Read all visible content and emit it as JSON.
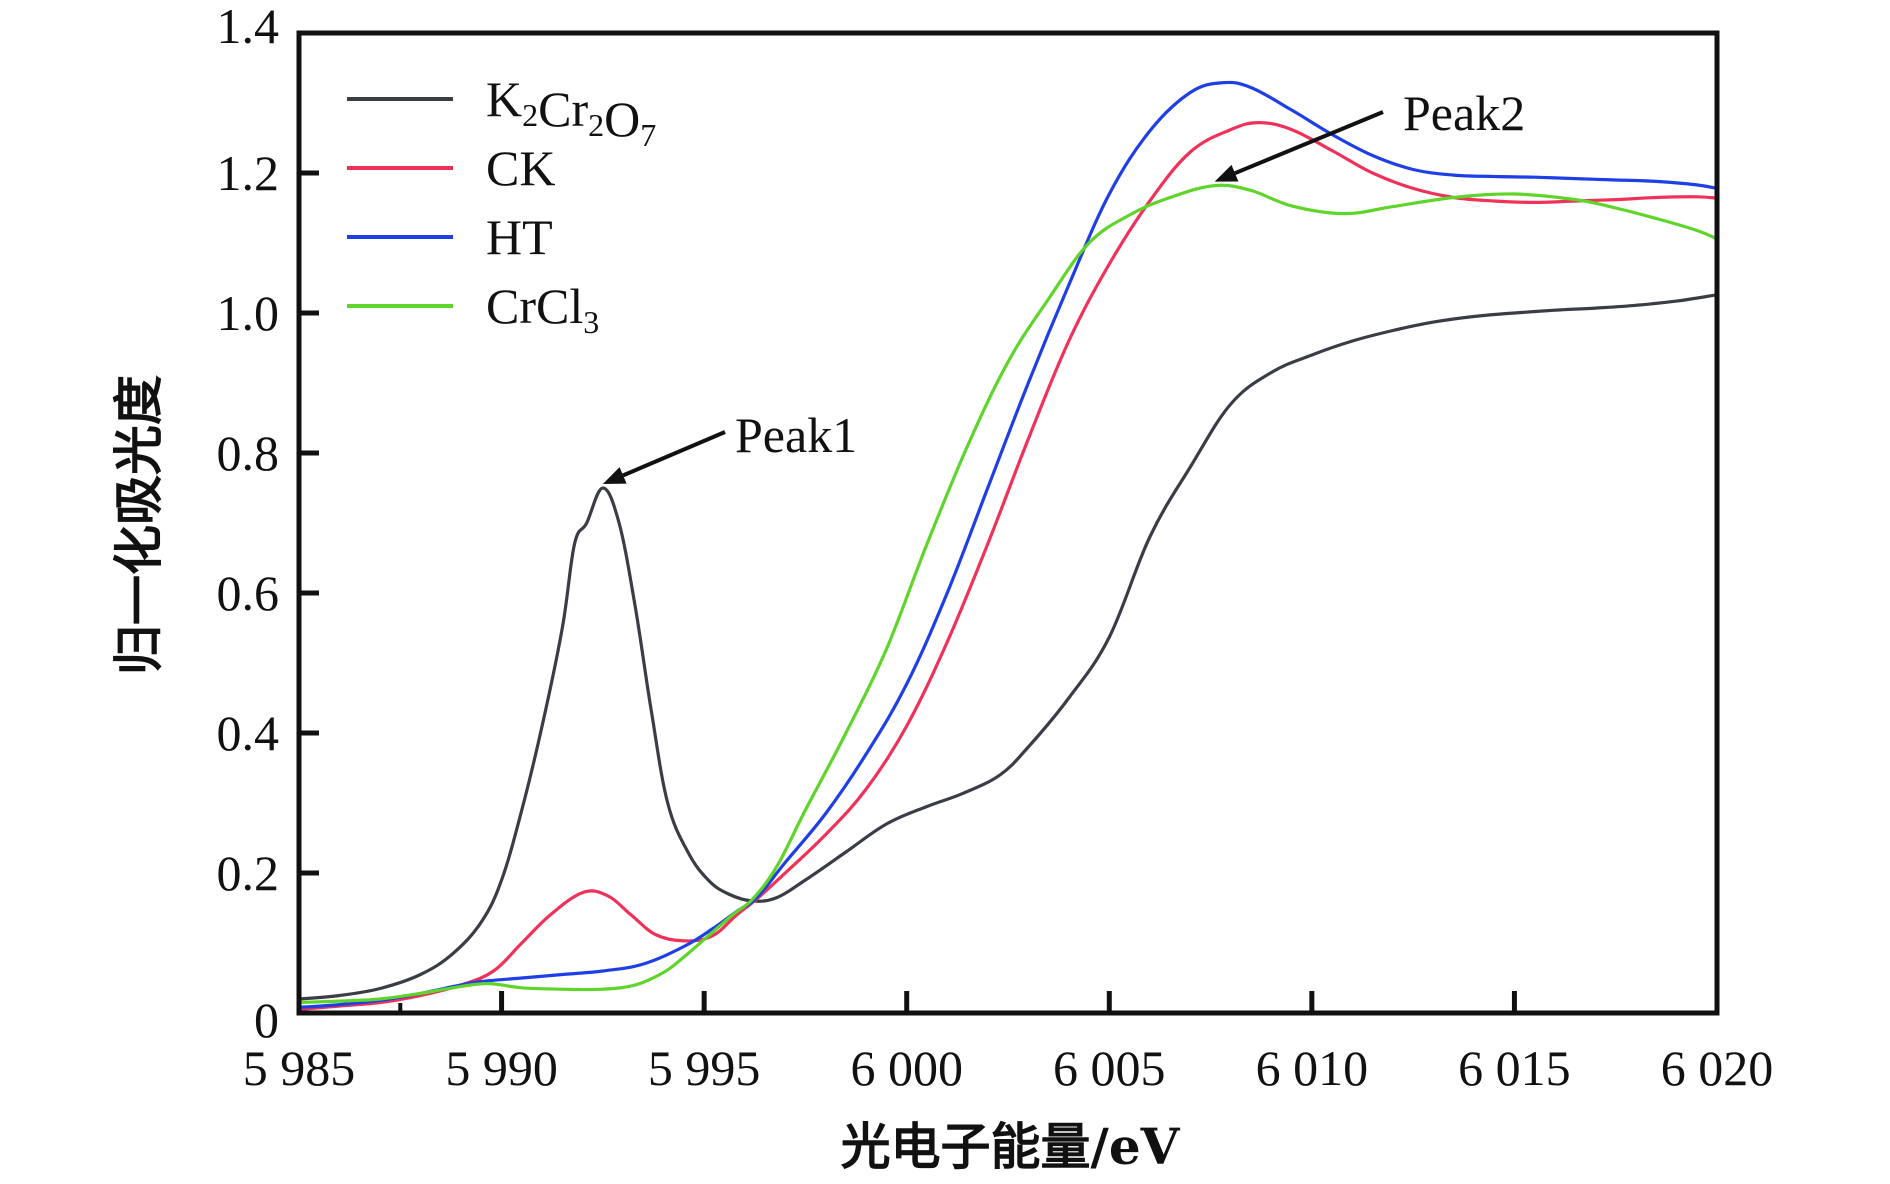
{
  "chart_data": {
    "type": "line",
    "title": "",
    "xlabel": "光电子能量/eV",
    "ylabel": "归一化吸光度",
    "xlim": [
      5985,
      6020
    ],
    "ylim": [
      0,
      1.4
    ],
    "grid": false,
    "legend_position": "top-left",
    "x_ticks": [
      5985,
      5990,
      5995,
      6000,
      6005,
      6010,
      6015,
      6020
    ],
    "x_tick_labels": [
      "5 985",
      "5 990",
      "5 995",
      "6 000",
      "6 005",
      "6 010",
      "6 015",
      "6 020"
    ],
    "y_ticks": [
      0,
      0.2,
      0.4,
      0.6,
      0.8,
      1.0,
      1.2,
      1.4
    ],
    "y_tick_labels": [
      "0",
      "0.2",
      "0.4",
      "0.6",
      "0.8",
      "1.0",
      "1.2",
      "1.4"
    ],
    "series": [
      {
        "name": "K2Cr2O7",
        "legend_main": [
          "K",
          "Cr",
          "O"
        ],
        "legend_sub": [
          "2",
          "2",
          "7"
        ],
        "color": "#3a3d45",
        "x": [
          5985,
          5986,
          5987,
          5988,
          5988.8,
          5989.5,
          5990,
          5990.5,
          5991,
          5991.5,
          5991.8,
          5992.1,
          5992.5,
          5992.9,
          5993.3,
          5993.7,
          5994.1,
          5994.6,
          5995.1,
          5995.6,
          5996.2,
          5996.8,
          5997.5,
          5998.5,
          5999.5,
          6000.5,
          6001.4,
          6002.3,
          6003,
          6004,
          6005,
          6006,
          6007,
          6008,
          6009,
          6010,
          6011,
          6012,
          6013,
          6014,
          6015,
          6016,
          6017,
          6018,
          6019,
          6020
        ],
        "y": [
          0.02,
          0.025,
          0.035,
          0.055,
          0.085,
          0.13,
          0.19,
          0.29,
          0.41,
          0.55,
          0.67,
          0.7,
          0.75,
          0.7,
          0.58,
          0.43,
          0.3,
          0.23,
          0.19,
          0.17,
          0.16,
          0.165,
          0.19,
          0.23,
          0.27,
          0.295,
          0.314,
          0.34,
          0.38,
          0.45,
          0.537,
          0.68,
          0.78,
          0.87,
          0.915,
          0.94,
          0.96,
          0.975,
          0.987,
          0.995,
          1.0,
          1.004,
          1.007,
          1.011,
          1.017,
          1.026
        ]
      },
      {
        "name": "CK",
        "legend_main": [
          "CK"
        ],
        "legend_sub": [],
        "color": "#f0325a",
        "x": [
          5985,
          5986,
          5987,
          5988,
          5989,
          5989.8,
          5990.5,
          5991.2,
          5992,
          5992.6,
          5993.2,
          5993.8,
          5994.5,
          5995.2,
          5995.8,
          5996.3,
          5997,
          5998,
          5999,
          6000,
          6001,
          6002,
          6003,
          6004,
          6005,
          6006,
          6007,
          6008,
          6008.7,
          6009.5,
          6010.5,
          6011.5,
          6012.5,
          6013.5,
          6014.5,
          6015.5,
          6016.5,
          6017.5,
          6018.5,
          6019.5,
          6020
        ],
        "y": [
          0.005,
          0.01,
          0.015,
          0.025,
          0.04,
          0.06,
          0.1,
          0.14,
          0.172,
          0.168,
          0.14,
          0.112,
          0.103,
          0.11,
          0.14,
          0.163,
          0.2,
          0.255,
          0.32,
          0.41,
          0.53,
          0.67,
          0.82,
          0.96,
          1.07,
          1.16,
          1.23,
          1.262,
          1.272,
          1.262,
          1.232,
          1.2,
          1.178,
          1.165,
          1.16,
          1.158,
          1.16,
          1.162,
          1.165,
          1.166,
          1.164
        ]
      },
      {
        "name": "HT",
        "legend_main": [
          "HT"
        ],
        "legend_sub": [],
        "color": "#1f3fe6",
        "x": [
          5985,
          5986,
          5987,
          5988,
          5989,
          5989.5,
          5990.5,
          5991.5,
          5992.5,
          5993.5,
          5994.5,
          5995.2,
          5995.8,
          5996.3,
          5997,
          5998,
          5999,
          6000,
          6001,
          6002,
          6003,
          6004,
          6005,
          6006,
          6007,
          6007.8,
          6008.5,
          6009.5,
          6010.5,
          6011.5,
          6012.5,
          6013.5,
          6014.5,
          6015.5,
          6016.5,
          6017.5,
          6018.5,
          6019.5,
          6020
        ],
        "y": [
          0.008,
          0.012,
          0.018,
          0.028,
          0.04,
          0.045,
          0.05,
          0.055,
          0.06,
          0.07,
          0.095,
          0.12,
          0.145,
          0.165,
          0.215,
          0.285,
          0.37,
          0.47,
          0.6,
          0.75,
          0.9,
          1.04,
          1.17,
          1.26,
          1.315,
          1.329,
          1.322,
          1.29,
          1.255,
          1.225,
          1.205,
          1.197,
          1.195,
          1.194,
          1.192,
          1.19,
          1.188,
          1.183,
          1.178
        ]
      },
      {
        "name": "CrCl3",
        "legend_main": [
          "CrCl"
        ],
        "legend_sub": [
          "3"
        ],
        "color": "#5fd42a",
        "x": [
          5985,
          5986,
          5987,
          5988,
          5989,
          5989.7,
          5990.5,
          5991.5,
          5992.5,
          5993.3,
          5994,
          5994.5,
          5995.1,
          5995.7,
          5996.2,
          5996.8,
          5997.5,
          5998.5,
          5999.5,
          6000.5,
          6001.5,
          6002.5,
          6003.5,
          6004.5,
          6005.5,
          6006.5,
          6007.6,
          6008.5,
          6009.5,
          6010.8,
          6012,
          6013.5,
          6015,
          6016.5,
          6017.5,
          6018.5,
          6019.5,
          6020
        ],
        "y": [
          0.015,
          0.017,
          0.02,
          0.028,
          0.038,
          0.042,
          0.036,
          0.034,
          0.034,
          0.04,
          0.058,
          0.08,
          0.11,
          0.14,
          0.163,
          0.21,
          0.29,
          0.4,
          0.52,
          0.67,
          0.81,
          0.93,
          1.02,
          1.1,
          1.14,
          1.165,
          1.182,
          1.175,
          1.153,
          1.142,
          1.152,
          1.165,
          1.17,
          1.162,
          1.15,
          1.135,
          1.118,
          1.106
        ]
      }
    ],
    "annotations": [
      {
        "label": "Peak1",
        "target_x": 5992.5,
        "target_y": 0.75,
        "series": "K2Cr2O7"
      },
      {
        "label": "Peak2",
        "target_x": 6007.6,
        "target_y": 1.182,
        "series": "CrCl3"
      }
    ]
  }
}
